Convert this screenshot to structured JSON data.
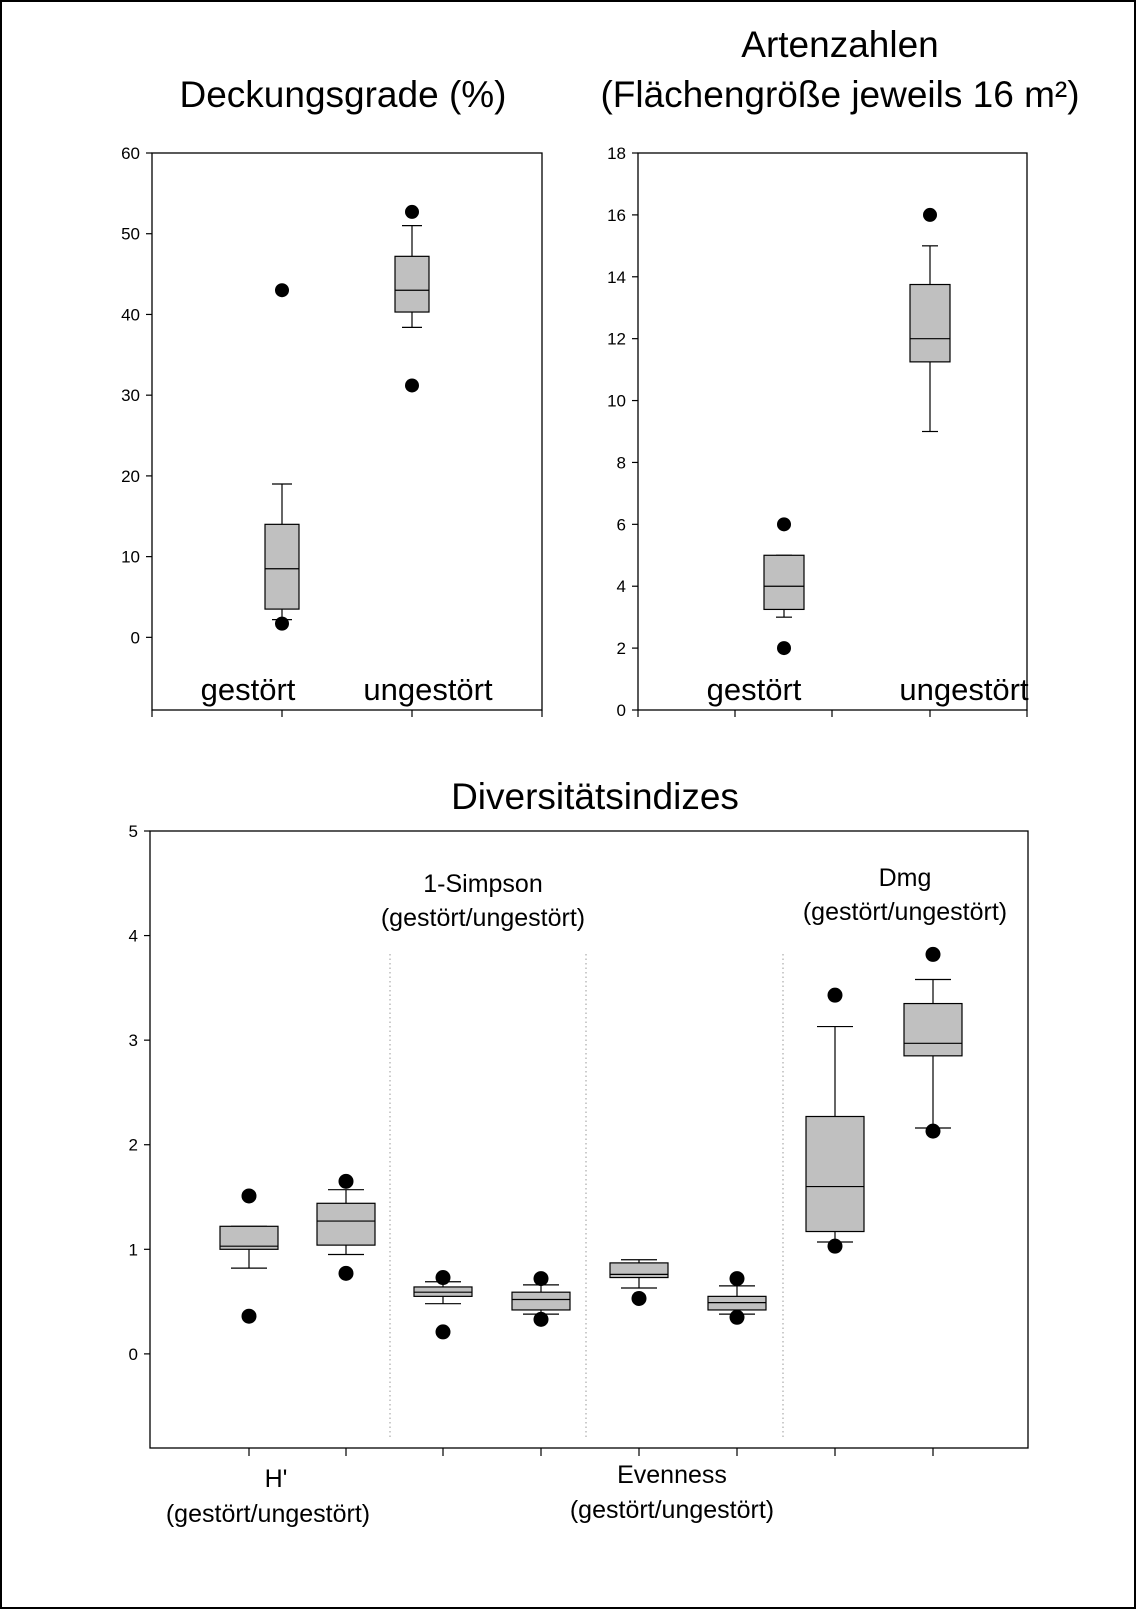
{
  "chart_data": [
    {
      "type": "boxplot",
      "title": "Deckungsgrade (%)",
      "categories": [
        "gestört",
        "ungestört"
      ],
      "ylim": [
        -9,
        60
      ],
      "yticks": [
        0,
        10,
        20,
        30,
        40,
        50,
        60
      ],
      "boxes": [
        {
          "q1": 3.5,
          "median": 8.5,
          "q3": 14,
          "whisker_low": 2.2,
          "whisker_high": 19,
          "outliers": [
            43,
            1.7
          ]
        },
        {
          "q1": 40.3,
          "median": 43,
          "q3": 47.2,
          "whisker_low": 38.4,
          "whisker_high": 51,
          "outliers": [
            52.7,
            31.2
          ]
        }
      ]
    },
    {
      "type": "boxplot",
      "title": "Artenzahlen",
      "subtitle": "(Flächengröße jeweils 16 m²)",
      "categories": [
        "gestört",
        "ungestört"
      ],
      "ylim": [
        0,
        18
      ],
      "yticks": [
        0,
        2,
        4,
        6,
        8,
        10,
        12,
        14,
        16,
        18
      ],
      "boxes": [
        {
          "q1": 3.25,
          "median": 4,
          "q3": 5,
          "whisker_low": 3,
          "whisker_high": 5,
          "outliers": [
            6,
            2
          ]
        },
        {
          "q1": 11.25,
          "median": 12,
          "q3": 13.75,
          "whisker_low": 9,
          "whisker_high": 15,
          "outliers": [
            16
          ]
        }
      ]
    },
    {
      "type": "boxplot",
      "title": "Diversitätsindizes",
      "ylim": [
        -0.9,
        5
      ],
      "yticks": [
        0,
        1,
        2,
        3,
        4,
        5
      ],
      "groups": [
        {
          "name": "H'",
          "sublabel": "(gestört/ungestört)"
        },
        {
          "name": "1-Simpson",
          "sublabel": "(gestört/ungestört)"
        },
        {
          "name": "Evenness",
          "sublabel": "(gestört/ungestört)"
        },
        {
          "name": "Dmg",
          "sublabel": "(gestört/ungestört)"
        }
      ],
      "boxes": [
        {
          "group": "H'",
          "q1": 1.0,
          "median": 1.03,
          "q3": 1.22,
          "whisker_low": 0.82,
          "whisker_high": 1.22,
          "outliers": [
            1.51,
            0.36
          ]
        },
        {
          "group": "H'",
          "q1": 1.04,
          "median": 1.27,
          "q3": 1.44,
          "whisker_low": 0.95,
          "whisker_high": 1.57,
          "outliers": [
            1.65,
            0.77
          ]
        },
        {
          "group": "1-Simpson",
          "q1": 0.55,
          "median": 0.59,
          "q3": 0.64,
          "whisker_low": 0.48,
          "whisker_high": 0.69,
          "outliers": [
            0.73,
            0.21
          ]
        },
        {
          "group": "1-Simpson",
          "q1": 0.42,
          "median": 0.52,
          "q3": 0.59,
          "whisker_low": 0.38,
          "whisker_high": 0.66,
          "outliers": [
            0.72,
            0.33
          ]
        },
        {
          "group": "Evenness",
          "q1": 0.73,
          "median": 0.76,
          "q3": 0.87,
          "whisker_low": 0.63,
          "whisker_high": 0.9,
          "outliers": [
            0.53
          ]
        },
        {
          "group": "Evenness",
          "q1": 0.42,
          "median": 0.49,
          "q3": 0.55,
          "whisker_low": 0.38,
          "whisker_high": 0.65,
          "outliers": [
            0.72,
            0.35
          ]
        },
        {
          "group": "Dmg",
          "q1": 1.17,
          "median": 1.6,
          "q3": 2.27,
          "whisker_low": 1.07,
          "whisker_high": 3.13,
          "outliers": [
            3.43,
            1.03
          ]
        },
        {
          "group": "Dmg",
          "q1": 2.85,
          "median": 2.97,
          "q3": 3.35,
          "whisker_low": 2.16,
          "whisker_high": 3.58,
          "outliers": [
            3.82,
            2.13
          ]
        }
      ]
    }
  ],
  "colors": {
    "box_fill": "#c0c0c0",
    "stroke": "#000000",
    "divider": "#9a9a9a"
  }
}
